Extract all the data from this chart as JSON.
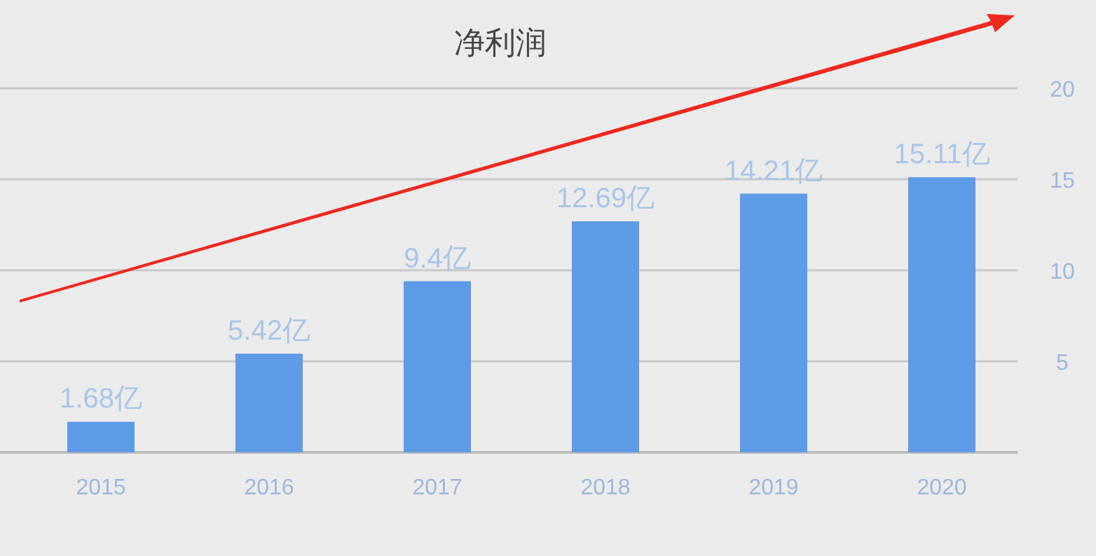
{
  "chart_data": {
    "type": "bar",
    "title": "净利润",
    "categories": [
      "2015",
      "2016",
      "2017",
      "2018",
      "2019",
      "2020"
    ],
    "values": [
      1.68,
      5.42,
      9.4,
      12.69,
      14.21,
      15.11
    ],
    "value_labels": [
      "1.68亿",
      "5.42亿",
      "9.4亿",
      "12.69亿",
      "14.21亿",
      "15.11亿"
    ],
    "color": "#5e9be6",
    "ylim": [
      0,
      20
    ],
    "yticks": [
      5,
      10,
      15,
      20
    ],
    "grid": "y"
  }
}
